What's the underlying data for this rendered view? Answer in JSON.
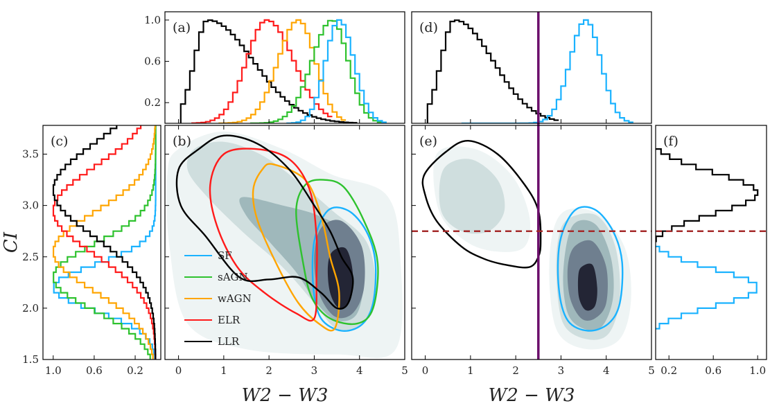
{
  "chart_data": [
    {
      "type": "histogram",
      "panel": "a",
      "label": "(a)",
      "xlim": [
        -0.3,
        5
      ],
      "ylim": [
        0,
        1.08
      ],
      "yticks": [
        "0.2",
        "0.6",
        "1.0"
      ],
      "series": [
        {
          "name": "LLR",
          "color": "#000000",
          "peak": 0.65,
          "sigma_left": 0.3,
          "sigma_right": 1.0,
          "range": [
            0.05,
            3.9
          ]
        },
        {
          "name": "ELR",
          "color": "#ff1a1a",
          "peak": 1.95,
          "sigma_left": 0.45,
          "sigma_right": 0.6,
          "range": [
            0.3,
            3.4
          ]
        },
        {
          "name": "wAGN",
          "color": "#ffa500",
          "peak": 2.65,
          "sigma_left": 0.45,
          "sigma_right": 0.38,
          "range": [
            0.9,
            3.7
          ]
        },
        {
          "name": "sAGN",
          "color": "#2ec22e",
          "peak": 3.4,
          "sigma_left": 0.45,
          "sigma_right": 0.35,
          "range": [
            1.6,
            4.45
          ]
        },
        {
          "name": "SF",
          "color": "#1ab2ff",
          "peak": 3.55,
          "sigma_left": 0.3,
          "sigma_right": 0.33,
          "range": [
            2.4,
            4.6
          ]
        }
      ]
    },
    {
      "type": "contour",
      "panel": "b",
      "label": "(b)",
      "xlim": [
        -0.3,
        5
      ],
      "ylim": [
        1.5,
        3.78
      ],
      "xticks": [
        "0",
        "1",
        "2",
        "3",
        "4",
        "5"
      ],
      "xlabel": "W2 − W3",
      "legend": {
        "location": "lower-left",
        "entries": [
          {
            "name": "SF",
            "color": "#1ab2ff"
          },
          {
            "name": "sAGN",
            "color": "#2ec22e"
          },
          {
            "name": "wAGN",
            "color": "#ffa500"
          },
          {
            "name": "ELR",
            "color": "#ff1a1a"
          },
          {
            "name": "LLR",
            "color": "#000000"
          }
        ]
      },
      "contours": [
        {
          "name": "SF",
          "color": "#1ab2ff",
          "points": [
            [
              3.3,
              2.95
            ],
            [
              3.75,
              2.95
            ],
            [
              4.15,
              2.75
            ],
            [
              4.35,
              2.45
            ],
            [
              4.3,
              2.05
            ],
            [
              4.05,
              1.84
            ],
            [
              3.6,
              1.78
            ],
            [
              3.15,
              1.9
            ],
            [
              2.98,
              2.2
            ],
            [
              3.0,
              2.65
            ]
          ]
        },
        {
          "name": "sAGN",
          "color": "#2ec22e",
          "points": [
            [
              3.2,
              3.25
            ],
            [
              3.65,
              3.18
            ],
            [
              4.1,
              2.85
            ],
            [
              4.4,
              2.45
            ],
            [
              4.3,
              2.0
            ],
            [
              3.95,
              1.85
            ],
            [
              3.35,
              1.9
            ],
            [
              2.95,
              2.1
            ],
            [
              2.75,
              2.45
            ],
            [
              2.6,
              2.95
            ],
            [
              2.8,
              3.2
            ]
          ]
        },
        {
          "name": "wAGN",
          "color": "#ffa500",
          "points": [
            [
              2.1,
              3.4
            ],
            [
              2.8,
              3.25
            ],
            [
              3.15,
              2.9
            ],
            [
              3.35,
              2.5
            ],
            [
              3.55,
              2.15
            ],
            [
              3.45,
              1.8
            ],
            [
              3.1,
              1.85
            ],
            [
              2.65,
              2.05
            ],
            [
              2.2,
              2.4
            ],
            [
              1.75,
              2.85
            ],
            [
              1.65,
              3.15
            ],
            [
              1.85,
              3.35
            ]
          ]
        },
        {
          "name": "ELR",
          "color": "#ff1a1a",
          "points": [
            [
              1.0,
              3.5
            ],
            [
              1.7,
              3.55
            ],
            [
              2.45,
              3.45
            ],
            [
              2.9,
              3.15
            ],
            [
              3.05,
              2.7
            ],
            [
              3.05,
              2.3
            ],
            [
              3.0,
              1.9
            ],
            [
              2.6,
              1.95
            ],
            [
              1.9,
              2.15
            ],
            [
              1.3,
              2.4
            ],
            [
              0.85,
              2.8
            ],
            [
              0.7,
              3.2
            ]
          ]
        },
        {
          "name": "LLR",
          "color": "#000000",
          "points": [
            [
              0.45,
              3.55
            ],
            [
              1.0,
              3.68
            ],
            [
              1.75,
              3.6
            ],
            [
              2.45,
              3.35
            ],
            [
              3.0,
              3.0
            ],
            [
              3.35,
              2.75
            ],
            [
              3.6,
              2.5
            ],
            [
              3.85,
              2.3
            ],
            [
              3.75,
              2.05
            ],
            [
              3.5,
              2.0
            ],
            [
              3.15,
              2.15
            ],
            [
              2.65,
              2.3
            ],
            [
              2.0,
              2.28
            ],
            [
              1.35,
              2.3
            ],
            [
              0.6,
              2.7
            ],
            [
              0.05,
              3.0
            ],
            [
              0.0,
              3.35
            ]
          ]
        }
      ]
    },
    {
      "type": "histogram",
      "orientation": "horizontal",
      "panel": "c",
      "label": "(c)",
      "xlim": [
        1.1,
        -0.05
      ],
      "xticks": [
        "1.0",
        "0.6",
        "0.2"
      ],
      "ylim": [
        1.5,
        3.78
      ],
      "yticks": [
        "1.5",
        "2.0",
        "2.5",
        "3.0",
        "3.5"
      ],
      "ylabel": "CI",
      "series": [
        {
          "name": "SF",
          "color": "#1ab2ff",
          "peak": 2.2,
          "sigma": 0.22
        },
        {
          "name": "sAGN",
          "color": "#2ec22e",
          "peak": 2.3,
          "sigma": 0.32
        },
        {
          "name": "wAGN",
          "color": "#ffa500",
          "peak": 2.55,
          "sigma": 0.38
        },
        {
          "name": "ELR",
          "color": "#ff1a1a",
          "peak": 2.95,
          "sigma": 0.42
        },
        {
          "name": "LLR",
          "color": "#000000",
          "peak": 3.15,
          "sigma": 0.45
        }
      ]
    },
    {
      "type": "histogram",
      "panel": "d",
      "label": "(d)",
      "xlim": [
        -0.3,
        5
      ],
      "ylim": [
        0,
        1.08
      ],
      "cut_line": {
        "x": 2.5,
        "color": "#6b0f6b"
      },
      "series": [
        {
          "name": "LLR",
          "color": "#000000",
          "peak": 0.65,
          "sigma_left": 0.3,
          "sigma_right": 0.85,
          "range": [
            0.05,
            2.95
          ]
        },
        {
          "name": "SF",
          "color": "#1ab2ff",
          "peak": 3.55,
          "sigma_left": 0.35,
          "sigma_right": 0.33,
          "range": [
            0.8,
            4.6
          ]
        }
      ]
    },
    {
      "type": "contour",
      "panel": "e",
      "label": "(e)",
      "xlim": [
        -0.3,
        5
      ],
      "ylim": [
        1.5,
        3.78
      ],
      "xticks": [
        "0",
        "1",
        "2",
        "3",
        "4",
        "5"
      ],
      "xlabel": "W2 − W3",
      "cut_lines": {
        "vertical_x": 2.5,
        "vertical_color": "#6b0f6b",
        "horizontal_y": 2.75,
        "horizontal_color": "#a52a2a"
      },
      "contours": [
        {
          "name": "LLR",
          "color": "#000000",
          "points": [
            [
              0.45,
              3.52
            ],
            [
              0.95,
              3.63
            ],
            [
              1.6,
              3.5
            ],
            [
              2.2,
              3.2
            ],
            [
              2.5,
              2.95
            ],
            [
              2.55,
              2.65
            ],
            [
              2.5,
              2.5
            ],
            [
              2.3,
              2.4
            ],
            [
              1.8,
              2.42
            ],
            [
              1.3,
              2.48
            ],
            [
              0.8,
              2.6
            ],
            [
              0.25,
              2.85
            ],
            [
              0.0,
              3.1
            ],
            [
              -0.02,
              3.3
            ]
          ]
        },
        {
          "name": "SF",
          "color": "#1ab2ff",
          "points": [
            [
              3.3,
              2.95
            ],
            [
              3.75,
              2.96
            ],
            [
              4.15,
              2.75
            ],
            [
              4.35,
              2.45
            ],
            [
              4.3,
              2.05
            ],
            [
              4.05,
              1.85
            ],
            [
              3.6,
              1.78
            ],
            [
              3.15,
              1.88
            ],
            [
              2.95,
              2.2
            ],
            [
              2.98,
              2.65
            ]
          ]
        }
      ]
    },
    {
      "type": "histogram",
      "orientation": "horizontal",
      "panel": "f",
      "label": "(f)",
      "xlim": [
        0.08,
        1.08
      ],
      "xticks": [
        "0.2",
        "0.6",
        "1.0"
      ],
      "ylim": [
        1.5,
        3.78
      ],
      "cut_line": {
        "y": 2.75,
        "color": "#a52a2a"
      },
      "series": [
        {
          "name": "LLR",
          "color": "#000000",
          "peak": 3.12,
          "sigma": 0.2,
          "range": [
            2.0,
            3.75
          ]
        },
        {
          "name": "SF",
          "color": "#1ab2ff",
          "peak": 2.2,
          "sigma": 0.18,
          "range": [
            1.55,
            3.5
          ]
        }
      ]
    }
  ]
}
